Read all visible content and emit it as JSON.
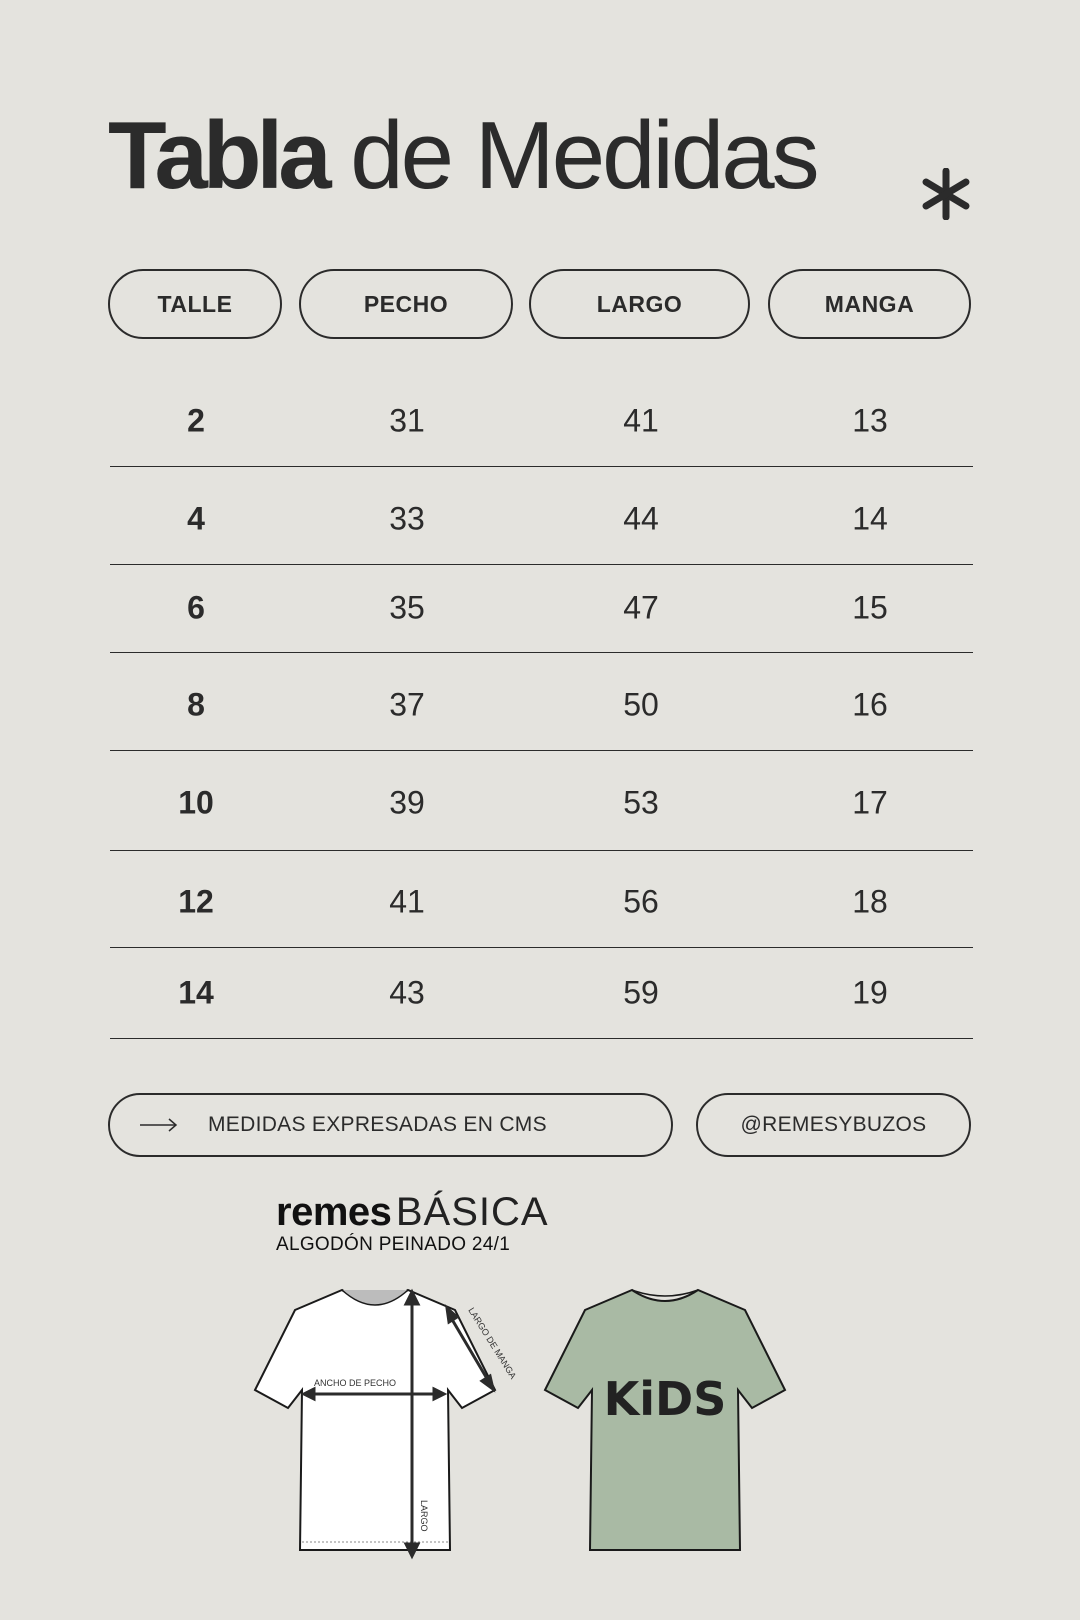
{
  "title": {
    "bold": "Tabla",
    "light": "de Medidas",
    "icon": "asterisk-icon"
  },
  "table": {
    "headers": [
      "TALLE",
      "PECHO",
      "LARGO",
      "MANGA"
    ],
    "rows": [
      [
        "2",
        "31",
        "41",
        "13"
      ],
      [
        "4",
        "33",
        "44",
        "14"
      ],
      [
        "6",
        "35",
        "47",
        "15"
      ],
      [
        "8",
        "37",
        "50",
        "16"
      ],
      [
        "10",
        "39",
        "53",
        "17"
      ],
      [
        "12",
        "41",
        "56",
        "18"
      ],
      [
        "14",
        "43",
        "59",
        "19"
      ]
    ]
  },
  "footer": {
    "note": "MEDIDAS EXPRESADAS EN CMS",
    "note_icon": "arrow-right-icon",
    "handle": "@REMESYBUZOS"
  },
  "product": {
    "brand": "remes",
    "line": "BÁSICA",
    "fabric": "ALGODÓN PEINADO 24/1"
  },
  "diagram": {
    "chest": "ANCHO DE PECHO",
    "sleeve": "LARGO DE MANGA",
    "length": "LARGO",
    "print": "KiDS"
  },
  "colors": {
    "background": "#e4e3de",
    "text": "#2b2b2b",
    "shirt_green": "#a9baa4"
  }
}
